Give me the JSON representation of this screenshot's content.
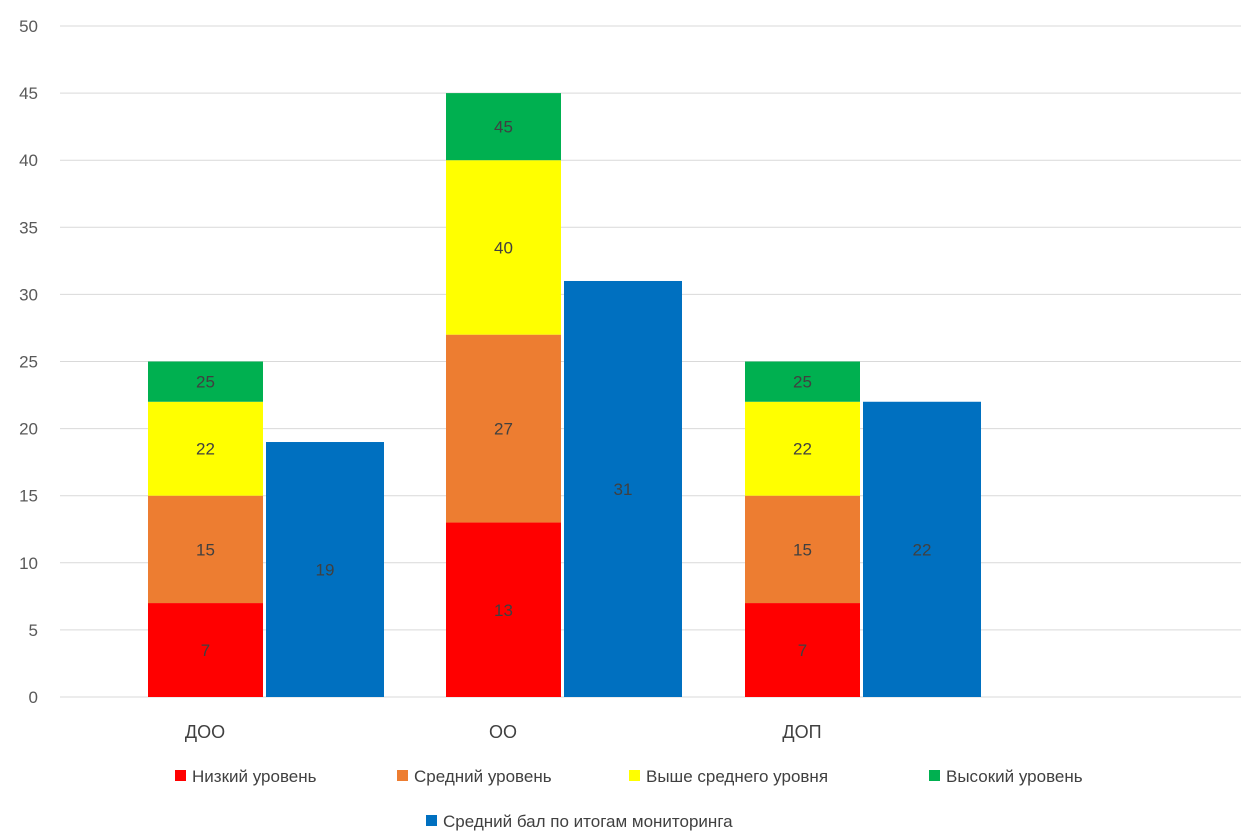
{
  "chart_data": {
    "type": "bar",
    "stacked": true,
    "categories": [
      "ДОО",
      "ОО",
      "ДОП"
    ],
    "ylim": [
      0,
      50
    ],
    "yticks": [
      0,
      5,
      10,
      15,
      20,
      25,
      30,
      35,
      40,
      45,
      50
    ],
    "grid": true,
    "legend_position": "bottom",
    "stacked_series": [
      {
        "name": "Низкий уровень",
        "color": "#ff0000",
        "values": [
          7,
          13,
          7
        ]
      },
      {
        "name": "Средний уровень",
        "color": "#ed7d31",
        "values": [
          15,
          27,
          15
        ]
      },
      {
        "name": "Выше среднего уровня",
        "color": "#ffff00",
        "values": [
          22,
          40,
          22
        ]
      },
      {
        "name": "Высокий уровень",
        "color": "#00b050",
        "values": [
          25,
          45,
          25
        ]
      }
    ],
    "separate_series": {
      "name": "Средний бал по итогам мониторинга",
      "color": "#0070c0",
      "values": [
        19,
        31,
        22
      ]
    }
  }
}
